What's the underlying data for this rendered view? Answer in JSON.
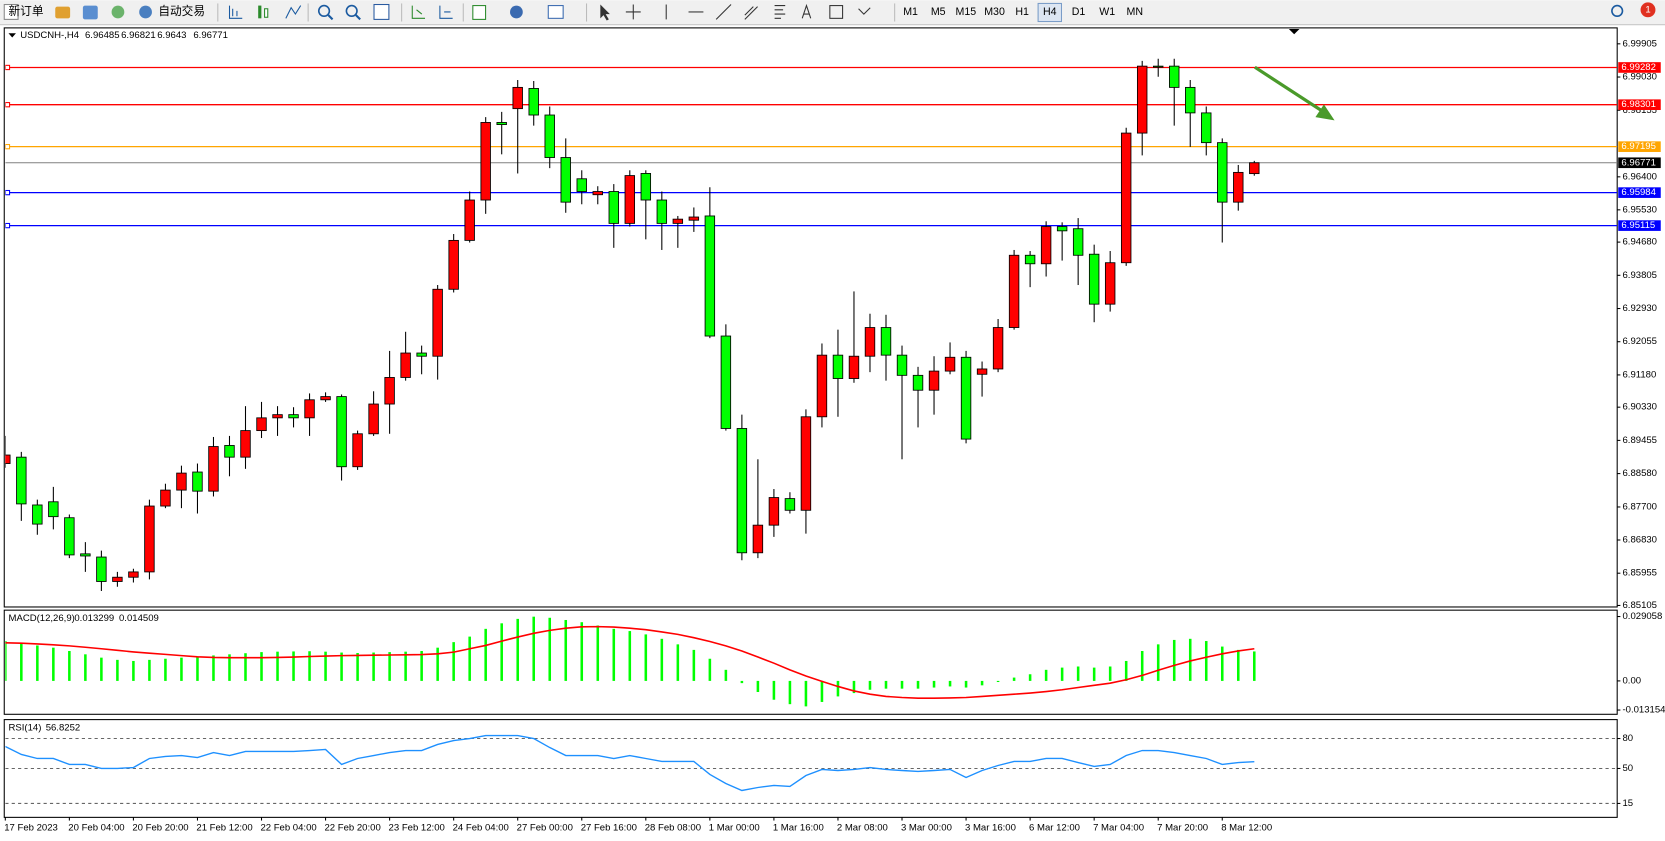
{
  "toolbar": {
    "buttons": [
      "新订单",
      "自动交易"
    ],
    "timeframes": [
      "M1",
      "M5",
      "M15",
      "M30",
      "H1",
      "H4",
      "D1",
      "W1",
      "MN"
    ],
    "active_timeframe": "H4",
    "notification": 1
  },
  "chart_data": [
    {
      "type": "candlestick",
      "symbol": "USDCNH-,H4",
      "up_color": "#ff0000",
      "down_color": "#00ff00",
      "last_price_color": "#808080",
      "categories": [
        "17 Feb 2023",
        null,
        null,
        null,
        "20 Feb 04:00",
        null,
        null,
        null,
        "20 Feb 20:00",
        null,
        null,
        null,
        "21 Feb 12:00",
        null,
        null,
        null,
        "22 Feb 04:00",
        null,
        null,
        null,
        "22 Feb 20:00",
        null,
        null,
        null,
        "23 Feb 12:00",
        null,
        null,
        null,
        "24 Feb 04:00",
        null,
        null,
        null,
        "27 Feb 00:00",
        null,
        null,
        null,
        "27 Feb 16:00",
        null,
        null,
        null,
        "28 Feb 08:00",
        null,
        null,
        null,
        "1 Mar 00:00",
        null,
        null,
        null,
        "1 Mar 16:00",
        null,
        null,
        null,
        "2 Mar 08:00",
        null,
        null,
        null,
        "3 Mar 00:00",
        null,
        null,
        null,
        "3 Mar 16:00",
        null,
        null,
        null,
        "6 Mar 12:00",
        null,
        null,
        null,
        "7 Mar 04:00",
        null,
        null,
        null,
        "7 Mar 20:00",
        null,
        null,
        null,
        "8 Mar 12:00",
        null,
        null
      ],
      "ohlc": [
        [
          6.88845,
          6.89573,
          6.88733,
          6.89069
        ],
        [
          6.89013,
          6.89153,
          6.87333,
          6.87781
        ],
        [
          6.87753,
          6.87893,
          6.86969,
          6.87249
        ],
        [
          6.87837,
          6.88229,
          6.87109,
          6.87445
        ],
        [
          6.87417,
          6.87501,
          6.86353,
          6.86437
        ],
        [
          6.86465,
          6.86773,
          6.85989,
          6.86409
        ],
        [
          6.86381,
          6.86549,
          6.85485,
          6.85737
        ],
        [
          6.85737,
          6.85989,
          6.85597,
          6.85849
        ],
        [
          6.85849,
          6.86073,
          6.85709,
          6.85989
        ],
        [
          6.85989,
          6.87893,
          6.85793,
          6.87725
        ],
        [
          6.87725,
          6.88313,
          6.87669,
          6.88145
        ],
        [
          6.88145,
          6.88789,
          6.87669,
          6.88593
        ],
        [
          6.88621,
          6.88845,
          6.87529,
          6.88117
        ],
        [
          6.88117,
          6.89545,
          6.87977,
          6.89293
        ],
        [
          6.89321,
          6.89573,
          6.88509,
          6.89013
        ],
        [
          6.89013,
          6.90357,
          6.88705,
          6.89713
        ],
        [
          6.89713,
          6.90469,
          6.89517,
          6.90049
        ],
        [
          6.90049,
          6.90357,
          6.89573,
          6.90133
        ],
        [
          6.90133,
          6.90329,
          6.89797,
          6.90049
        ],
        [
          6.90049,
          6.90693,
          6.89573,
          6.90525
        ],
        [
          6.90525,
          6.90721,
          6.90469,
          6.90609
        ],
        [
          6.90609,
          6.90665,
          6.88397,
          6.88761
        ],
        [
          6.88761,
          6.89713,
          6.88677,
          6.89629
        ],
        [
          6.89629,
          6.90749,
          6.89573,
          6.90413
        ],
        [
          6.90413,
          6.91813,
          6.89629,
          6.91113
        ],
        [
          6.91113,
          6.92317,
          6.91029,
          6.91757
        ],
        [
          6.91757,
          6.91953,
          6.91197,
          6.91673
        ],
        [
          6.91673,
          6.93549,
          6.91057,
          6.93437
        ],
        [
          6.93437,
          6.94893,
          6.93353,
          6.94725
        ],
        [
          6.94725,
          6.96013,
          6.94669,
          6.95789
        ],
        [
          6.95789,
          6.97973,
          6.95425,
          6.97833
        ],
        [
          6.97833,
          6.98113,
          6.96993,
          6.97777
        ],
        [
          6.98197,
          6.98953,
          6.96489,
          6.98757
        ],
        [
          6.98729,
          6.98925,
          6.97749,
          6.98029
        ],
        [
          6.98029,
          6.98253,
          6.96629,
          6.96909
        ],
        [
          6.96909,
          6.97413,
          6.95453,
          6.95733
        ],
        [
          6.96349,
          6.96573,
          6.95677,
          6.96013
        ],
        [
          6.95929,
          6.96153,
          6.95677,
          6.96013
        ],
        [
          6.96013,
          6.96209,
          6.94529,
          6.95173
        ],
        [
          6.95173,
          6.96573,
          6.95089,
          6.96433
        ],
        [
          6.96489,
          6.96573,
          6.94753,
          6.95789
        ],
        [
          6.95789,
          6.96013,
          6.94473,
          6.95173
        ],
        [
          6.95173,
          6.95369,
          6.94529,
          6.95285
        ],
        [
          6.95257,
          6.95593,
          6.94949,
          6.95341
        ],
        [
          6.95369,
          6.96125,
          6.92149,
          6.92205
        ],
        [
          6.92205,
          6.92513,
          6.89713,
          6.89769
        ],
        [
          6.89769,
          6.90133,
          6.86297,
          6.86493
        ],
        [
          6.86493,
          6.88957,
          6.86353,
          6.87221
        ],
        [
          6.87221,
          6.88173,
          6.86913,
          6.87949
        ],
        [
          6.87921,
          6.88089,
          6.87529,
          6.87613
        ],
        [
          6.87613,
          6.90273,
          6.86997,
          6.90077
        ],
        [
          6.90077,
          6.92009,
          6.89797,
          6.91701
        ],
        [
          6.91701,
          6.92373,
          6.90077,
          6.91085
        ],
        [
          6.91085,
          6.93381,
          6.90973,
          6.91673
        ],
        [
          6.91673,
          6.92793,
          6.91253,
          6.92429
        ],
        [
          6.92429,
          6.92765,
          6.91029,
          6.91701
        ],
        [
          6.91701,
          6.91953,
          6.88957,
          6.91169
        ],
        [
          6.91169,
          6.91393,
          6.89797,
          6.90777
        ],
        [
          6.90777,
          6.91673,
          6.90133,
          6.91281
        ],
        [
          6.91281,
          6.92037,
          6.91197,
          6.91645
        ],
        [
          6.91645,
          6.91813,
          6.89377,
          6.89489
        ],
        [
          6.91197,
          6.91533,
          6.90609,
          6.91337
        ],
        [
          6.91337,
          6.92653,
          6.91253,
          6.92429
        ],
        [
          6.92429,
          6.94473,
          6.92373,
          6.94333
        ],
        [
          6.94333,
          6.94445,
          6.93493,
          6.94109
        ],
        [
          6.94109,
          6.95229,
          6.93773,
          6.95089
        ],
        [
          6.95089,
          6.95201,
          6.94193,
          6.94977
        ],
        [
          6.95033,
          6.95313,
          6.93549,
          6.94333
        ],
        [
          6.94361,
          6.94613,
          6.92569,
          6.93045
        ],
        [
          6.93045,
          6.94445,
          6.92849,
          6.94137
        ],
        [
          6.94137,
          6.97693,
          6.94053,
          6.97553
        ],
        [
          6.97553,
          6.99457,
          6.96965,
          6.99317
        ],
        [
          6.99317,
          6.99513,
          6.99037,
          6.99289
        ],
        [
          6.99317,
          6.99513,
          6.97749,
          6.98757
        ],
        [
          6.98757,
          6.98953,
          6.97189,
          6.98085
        ],
        [
          6.98085,
          6.98253,
          6.96965,
          6.97301
        ],
        [
          6.97301,
          6.97413,
          6.94669,
          6.95733
        ],
        [
          6.95733,
          6.96713,
          6.95509,
          6.96517
        ],
        [
          6.96485,
          6.96821,
          6.9643,
          6.96771
        ]
      ],
      "ylim": [
        6.85065,
        7.00325
      ],
      "yticks": [
        6.99905,
        {
          "value": 6.9903,
          "label": "6.99030"
        },
        6.98155,
        {
          "value": 6.964,
          "label": "6.96400"
        },
        {
          "value": 6.9553,
          "label": "6.95530"
        },
        {
          "value": 6.9468,
          "label": "6.94680"
        },
        6.93805,
        {
          "value": 6.9293,
          "label": "6.92930"
        },
        6.92055,
        {
          "value": 6.9118,
          "label": "6.91180"
        },
        {
          "value": 6.9033,
          "label": "6.90330"
        },
        6.89455,
        {
          "value": 6.8858,
          "label": "6.88580"
        },
        {
          "value": 6.877,
          "label": "6.87700"
        },
        {
          "value": 6.8683,
          "label": "6.86830"
        },
        6.85955,
        6.85105
      ],
      "levels": [
        {
          "value": 6.99282,
          "color": "#ff0000"
        },
        {
          "value": 6.98301,
          "color": "#ff0000"
        },
        {
          "value": 6.97195,
          "color": "#ffa500"
        },
        {
          "value": 6.95984,
          "color": "#0000ff"
        },
        {
          "value": 6.95115,
          "color": "#0000ff"
        }
      ]
    },
    {
      "type": "macd",
      "title": "MACD(12,26,9)",
      "histogram": {
        "color": "#00ff00",
        "values": [
          0.018,
          0.017,
          0.016,
          0.015,
          0.0135,
          0.012,
          0.0105,
          0.0095,
          0.009,
          0.0095,
          0.01,
          0.0105,
          0.011,
          0.0115,
          0.012,
          0.0125,
          0.013,
          0.0132,
          0.0133,
          0.0134,
          0.0132,
          0.0128,
          0.0126,
          0.0128,
          0.013,
          0.0132,
          0.0135,
          0.015,
          0.0175,
          0.02,
          0.0235,
          0.026,
          0.028,
          0.029,
          0.0285,
          0.0275,
          0.0265,
          0.025,
          0.0235,
          0.0225,
          0.021,
          0.019,
          0.0165,
          0.014,
          0.01,
          0.005,
          -0.001,
          -0.005,
          -0.0085,
          -0.0105,
          -0.0115,
          -0.0095,
          -0.007,
          -0.0055,
          -0.004,
          -0.0035,
          -0.0035,
          -0.0035,
          -0.003,
          -0.0025,
          -0.003,
          -0.002,
          -0.0005,
          0.0015,
          0.003,
          0.005,
          0.006,
          0.0065,
          0.006,
          0.0065,
          0.009,
          0.0135,
          0.0165,
          0.0185,
          0.019,
          0.018,
          0.0155,
          0.014,
          0.013299
        ]
      },
      "signal": {
        "color": "#ff0000",
        "values": [
          0.0172,
          0.017,
          0.0167,
          0.0163,
          0.0158,
          0.0152,
          0.0145,
          0.0138,
          0.0131,
          0.0125,
          0.012,
          0.0114,
          0.0109,
          0.0106,
          0.0105,
          0.0105,
          0.0105,
          0.0106,
          0.0108,
          0.011,
          0.0112,
          0.0114,
          0.0115,
          0.0116,
          0.0117,
          0.0118,
          0.0119,
          0.0122,
          0.013,
          0.0145,
          0.016,
          0.018,
          0.0198,
          0.0215,
          0.0228,
          0.0238,
          0.0244,
          0.0245,
          0.0243,
          0.0238,
          0.0231,
          0.0221,
          0.021,
          0.0195,
          0.0178,
          0.0158,
          0.0135,
          0.0108,
          0.008,
          0.005,
          0.0022,
          -0.0002,
          -0.0025,
          -0.0045,
          -0.006,
          -0.007,
          -0.0075,
          -0.0078,
          -0.0078,
          -0.0077,
          -0.0075,
          -0.007,
          -0.0065,
          -0.006,
          -0.0055,
          -0.0048,
          -0.004,
          -0.003,
          -0.002,
          -0.001,
          0.0005,
          0.0025,
          0.0048,
          0.007,
          0.009,
          0.0107,
          0.0122,
          0.0135,
          0.014509
        ]
      },
      "ylim": [
        -0.013154,
        0.029058
      ],
      "yticks": [
        0.029058,
        {
          "value": 0,
          "label": "0.00"
        },
        -0.013154
      ]
    },
    {
      "type": "line",
      "title": "RSI(14)",
      "color": "#1e90ff",
      "grid": true,
      "values": [
        72,
        64,
        60,
        60,
        54,
        54,
        50,
        50,
        51,
        60,
        62,
        63,
        61,
        66,
        63,
        67,
        67,
        67,
        67,
        68,
        69,
        54,
        60,
        63,
        66,
        68,
        68,
        74,
        78,
        80,
        83,
        83,
        83,
        80,
        71,
        63,
        63,
        63,
        60,
        63,
        60,
        57,
        57,
        57,
        44,
        35,
        28,
        31,
        33,
        32,
        43,
        49,
        48,
        49,
        51,
        49,
        48,
        47,
        48,
        49,
        41,
        48,
        53,
        57,
        57,
        60,
        60,
        56,
        52,
        54,
        63,
        68,
        68,
        66,
        63,
        60,
        54,
        56,
        56.8252
      ],
      "ylim": [
        0,
        100
      ],
      "yticks": [
        80,
        50,
        15
      ]
    }
  ]
}
